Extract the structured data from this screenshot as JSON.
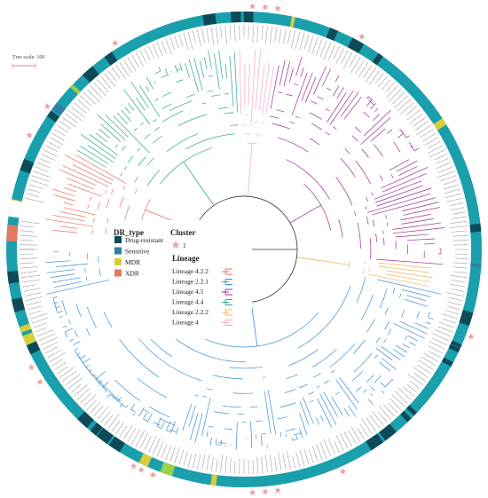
{
  "tree_scale": {
    "label": "Tree scale: 100"
  },
  "legend": {
    "dr_title": "DR_type",
    "dr_items": [
      {
        "label": "Drug-resistant",
        "color": "#0d4a57"
      },
      {
        "label": "Sensitive",
        "color": "#2e7fa2"
      },
      {
        "label": "MDR",
        "color": "#d6cf3a"
      },
      {
        "label": "XDR",
        "color": "#e07a62"
      }
    ],
    "cluster_title": "Cluster",
    "cluster_item": {
      "label": "1",
      "symbol": "star-icon",
      "color": "#f0a4a4"
    },
    "lineage_title": "Lineage",
    "lineage_items": [
      {
        "label": "Lineage 4.2.2",
        "color": "#e8706a"
      },
      {
        "label": "Lineage 2.2.1",
        "color": "#3a8fd6"
      },
      {
        "label": "Lineage 4.5",
        "color": "#9a2f92"
      },
      {
        "label": "Lineage 4.4",
        "color": "#2aa592"
      },
      {
        "label": "Lineage 2.2.2",
        "color": "#f0b458"
      },
      {
        "label": "Lineage 4",
        "color": "#f5a9c9"
      }
    ]
  },
  "ring_colors": {
    "base": "#1a9fad",
    "dark": "#0d4a57",
    "mdr": "#d6cf3a",
    "xdr": "#e07a62",
    "lime": "#9ad04a",
    "sensitive": "#2e7fa2"
  },
  "clades": [
    {
      "lineage": "Lineage 4.5",
      "color": "#9a2f92",
      "start_deg": -80,
      "end_deg": 5
    },
    {
      "lineage": "Lineage 2.2.2",
      "color": "#f0b458",
      "start_deg": 5,
      "end_deg": 12
    },
    {
      "lineage": "Lineage 2.2.1",
      "color": "#3a8fd6",
      "start_deg": 12,
      "end_deg": 180
    },
    {
      "lineage": "Lineage 4.2.2",
      "color": "#e8706a",
      "start_deg": -175,
      "end_deg": -150
    },
    {
      "lineage": "Lineage 4.4",
      "color": "#2aa592",
      "start_deg": -150,
      "end_deg": -92
    },
    {
      "lineage": "Lineage 4",
      "color": "#f5a9c9",
      "start_deg": -92,
      "end_deg": -80
    }
  ]
}
